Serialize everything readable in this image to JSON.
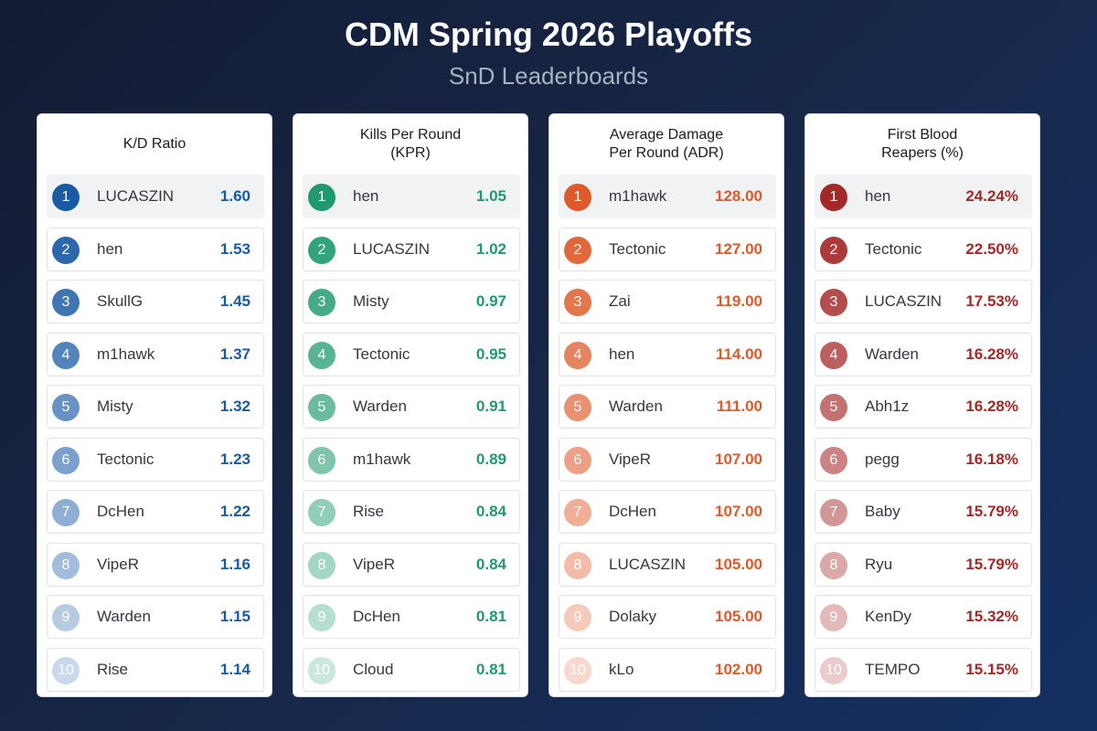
{
  "title": "CDM Spring 2026 Playoffs",
  "subtitle": "SnD Leaderboards",
  "chart_data": [
    {
      "type": "table",
      "title": "K/D Ratio",
      "color": "#1a5aa5",
      "rows": [
        {
          "rank": "1",
          "player": "LUCASZIN",
          "value": "1.60"
        },
        {
          "rank": "2",
          "player": "hen",
          "value": "1.53"
        },
        {
          "rank": "3",
          "player": "SkullG",
          "value": "1.45"
        },
        {
          "rank": "4",
          "player": "m1hawk",
          "value": "1.37"
        },
        {
          "rank": "5",
          "player": "Misty",
          "value": "1.32"
        },
        {
          "rank": "6",
          "player": "Tectonic",
          "value": "1.23"
        },
        {
          "rank": "7",
          "player": "DcHen",
          "value": "1.22"
        },
        {
          "rank": "8",
          "player": "VipeR",
          "value": "1.16"
        },
        {
          "rank": "9",
          "player": "Warden",
          "value": "1.15"
        },
        {
          "rank": "10",
          "player": "Rise",
          "value": "1.14"
        }
      ]
    },
    {
      "type": "table",
      "title": "Kills Per Round\n(KPR)",
      "color": "#1f9a6e",
      "rows": [
        {
          "rank": "1",
          "player": "hen",
          "value": "1.05"
        },
        {
          "rank": "2",
          "player": "LUCASZIN",
          "value": "1.02"
        },
        {
          "rank": "3",
          "player": "Misty",
          "value": "0.97"
        },
        {
          "rank": "4",
          "player": "Tectonic",
          "value": "0.95"
        },
        {
          "rank": "5",
          "player": "Warden",
          "value": "0.91"
        },
        {
          "rank": "6",
          "player": "m1hawk",
          "value": "0.89"
        },
        {
          "rank": "7",
          "player": "Rise",
          "value": "0.84"
        },
        {
          "rank": "8",
          "player": "VipeR",
          "value": "0.84"
        },
        {
          "rank": "9",
          "player": "DcHen",
          "value": "0.81"
        },
        {
          "rank": "10",
          "player": "Cloud",
          "value": "0.81"
        }
      ]
    },
    {
      "type": "table",
      "title": "Average Damage\nPer Round (ADR)",
      "color": "#de5a2a",
      "rows": [
        {
          "rank": "1",
          "player": "m1hawk",
          "value": "128.00"
        },
        {
          "rank": "2",
          "player": "Tectonic",
          "value": "127.00"
        },
        {
          "rank": "3",
          "player": "Zai",
          "value": "119.00"
        },
        {
          "rank": "4",
          "player": "hen",
          "value": "114.00"
        },
        {
          "rank": "5",
          "player": "Warden",
          "value": "111.00"
        },
        {
          "rank": "6",
          "player": "VipeR",
          "value": "107.00"
        },
        {
          "rank": "7",
          "player": "DcHen",
          "value": "107.00"
        },
        {
          "rank": "8",
          "player": "LUCASZIN",
          "value": "105.00"
        },
        {
          "rank": "9",
          "player": "Dolaky",
          "value": "105.00"
        },
        {
          "rank": "10",
          "player": "kLo",
          "value": "102.00"
        }
      ]
    },
    {
      "type": "table",
      "title": "First Blood\nReapers (%)",
      "color": "#a52828",
      "rows": [
        {
          "rank": "1",
          "player": "hen",
          "value": "24.24%"
        },
        {
          "rank": "2",
          "player": "Tectonic",
          "value": "22.50%"
        },
        {
          "rank": "3",
          "player": "LUCASZIN",
          "value": "17.53%"
        },
        {
          "rank": "4",
          "player": "Warden",
          "value": "16.28%"
        },
        {
          "rank": "5",
          "player": "Abh1z",
          "value": "16.28%"
        },
        {
          "rank": "6",
          "player": "pegg",
          "value": "16.18%"
        },
        {
          "rank": "7",
          "player": "Baby",
          "value": "15.79%"
        },
        {
          "rank": "8",
          "player": "Ryu",
          "value": "15.79%"
        },
        {
          "rank": "9",
          "player": "KenDy",
          "value": "15.32%"
        },
        {
          "rank": "10",
          "player": "TEMPO",
          "value": "15.15%"
        }
      ]
    }
  ]
}
